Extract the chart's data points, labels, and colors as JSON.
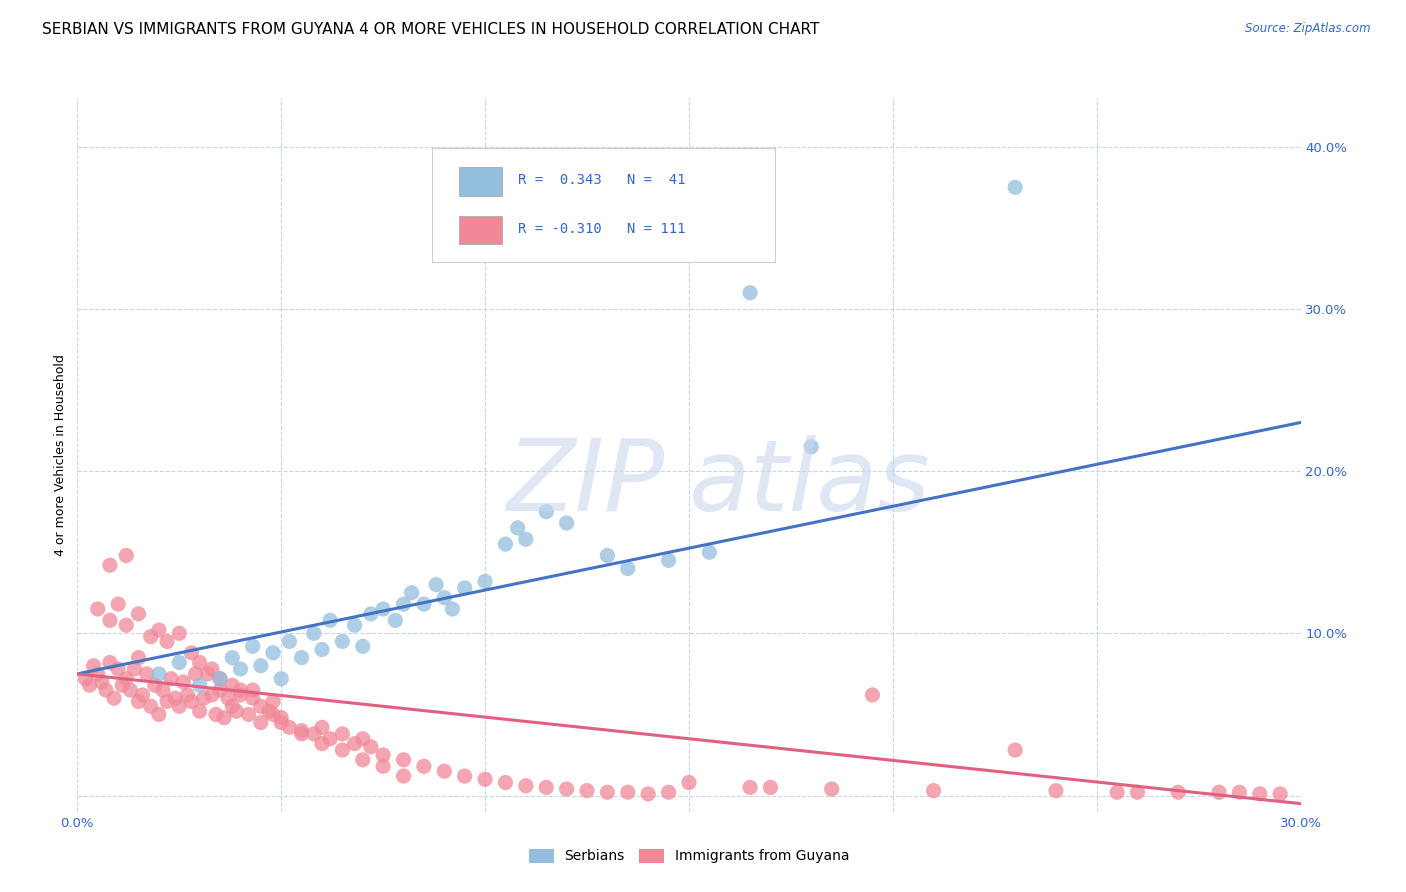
{
  "title": "SERBIAN VS IMMIGRANTS FROM GUYANA 4 OR MORE VEHICLES IN HOUSEHOLD CORRELATION CHART",
  "source": "Source: ZipAtlas.com",
  "ylabel": "4 or more Vehicles in Household",
  "xlim": [
    0.0,
    0.3
  ],
  "ylim": [
    -0.01,
    0.43
  ],
  "xticks": [
    0.0,
    0.05,
    0.1,
    0.15,
    0.2,
    0.25,
    0.3
  ],
  "yticks": [
    0.0,
    0.1,
    0.2,
    0.3,
    0.4
  ],
  "ytick_labels_right": [
    "",
    "10.0%",
    "20.0%",
    "30.0%",
    "40.0%"
  ],
  "legend_r_values": [
    " 0.343",
    "-0.310"
  ],
  "legend_n_values": [
    " 41",
    "111"
  ],
  "serbian_color": "#93bedd",
  "guyana_color": "#f08898",
  "serbian_line_color": "#4472c4",
  "guyana_line_color": "#e06080",
  "serbian_line_x": [
    0.0,
    0.3
  ],
  "serbian_line_y": [
    0.075,
    0.23
  ],
  "guyana_line_x": [
    0.0,
    0.3
  ],
  "guyana_line_y": [
    0.075,
    -0.005
  ],
  "serbian_scatter_x": [
    0.02,
    0.025,
    0.03,
    0.035,
    0.038,
    0.04,
    0.043,
    0.045,
    0.048,
    0.05,
    0.052,
    0.055,
    0.058,
    0.06,
    0.062,
    0.065,
    0.068,
    0.07,
    0.072,
    0.075,
    0.078,
    0.08,
    0.082,
    0.085,
    0.088,
    0.09,
    0.092,
    0.095,
    0.1,
    0.105,
    0.108,
    0.11,
    0.115,
    0.12,
    0.13,
    0.135,
    0.145,
    0.155,
    0.165,
    0.18,
    0.23
  ],
  "serbian_scatter_y": [
    0.075,
    0.082,
    0.068,
    0.072,
    0.085,
    0.078,
    0.092,
    0.08,
    0.088,
    0.072,
    0.095,
    0.085,
    0.1,
    0.09,
    0.108,
    0.095,
    0.105,
    0.092,
    0.112,
    0.115,
    0.108,
    0.118,
    0.125,
    0.118,
    0.13,
    0.122,
    0.115,
    0.128,
    0.132,
    0.155,
    0.165,
    0.158,
    0.175,
    0.168,
    0.148,
    0.14,
    0.145,
    0.15,
    0.31,
    0.215,
    0.375
  ],
  "guyana_scatter_x": [
    0.002,
    0.003,
    0.004,
    0.005,
    0.006,
    0.007,
    0.008,
    0.009,
    0.01,
    0.011,
    0.012,
    0.013,
    0.014,
    0.015,
    0.015,
    0.016,
    0.017,
    0.018,
    0.019,
    0.02,
    0.021,
    0.022,
    0.023,
    0.024,
    0.025,
    0.026,
    0.027,
    0.028,
    0.029,
    0.03,
    0.031,
    0.032,
    0.033,
    0.034,
    0.035,
    0.036,
    0.037,
    0.038,
    0.039,
    0.04,
    0.042,
    0.043,
    0.045,
    0.047,
    0.048,
    0.05,
    0.052,
    0.055,
    0.058,
    0.06,
    0.062,
    0.065,
    0.068,
    0.07,
    0.072,
    0.075,
    0.08,
    0.085,
    0.09,
    0.095,
    0.1,
    0.105,
    0.11,
    0.115,
    0.12,
    0.125,
    0.13,
    0.135,
    0.14,
    0.145,
    0.005,
    0.008,
    0.01,
    0.012,
    0.015,
    0.018,
    0.02,
    0.022,
    0.025,
    0.028,
    0.03,
    0.033,
    0.035,
    0.038,
    0.04,
    0.043,
    0.045,
    0.048,
    0.05,
    0.055,
    0.06,
    0.065,
    0.07,
    0.075,
    0.08,
    0.15,
    0.17,
    0.185,
    0.21,
    0.24,
    0.26,
    0.27,
    0.28,
    0.285,
    0.29,
    0.295,
    0.165,
    0.195,
    0.23,
    0.255,
    0.008,
    0.012
  ],
  "guyana_scatter_y": [
    0.072,
    0.068,
    0.08,
    0.075,
    0.07,
    0.065,
    0.082,
    0.06,
    0.078,
    0.068,
    0.072,
    0.065,
    0.078,
    0.058,
    0.085,
    0.062,
    0.075,
    0.055,
    0.068,
    0.05,
    0.065,
    0.058,
    0.072,
    0.06,
    0.055,
    0.07,
    0.062,
    0.058,
    0.075,
    0.052,
    0.06,
    0.075,
    0.062,
    0.05,
    0.065,
    0.048,
    0.06,
    0.055,
    0.052,
    0.062,
    0.05,
    0.065,
    0.045,
    0.052,
    0.058,
    0.048,
    0.042,
    0.04,
    0.038,
    0.042,
    0.035,
    0.038,
    0.032,
    0.035,
    0.03,
    0.025,
    0.022,
    0.018,
    0.015,
    0.012,
    0.01,
    0.008,
    0.006,
    0.005,
    0.004,
    0.003,
    0.002,
    0.002,
    0.001,
    0.002,
    0.115,
    0.108,
    0.118,
    0.105,
    0.112,
    0.098,
    0.102,
    0.095,
    0.1,
    0.088,
    0.082,
    0.078,
    0.072,
    0.068,
    0.065,
    0.06,
    0.055,
    0.05,
    0.045,
    0.038,
    0.032,
    0.028,
    0.022,
    0.018,
    0.012,
    0.008,
    0.005,
    0.004,
    0.003,
    0.003,
    0.002,
    0.002,
    0.002,
    0.002,
    0.001,
    0.001,
    0.005,
    0.062,
    0.028,
    0.002,
    0.142,
    0.148
  ],
  "background_color": "#ffffff",
  "grid_color": "#c8d4e8",
  "title_fontsize": 11,
  "axis_fontsize": 9,
  "tick_fontsize": 9.5
}
